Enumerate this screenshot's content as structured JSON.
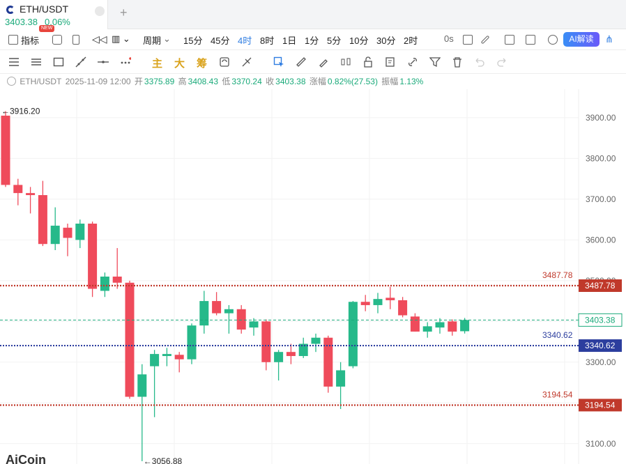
{
  "tab": {
    "title": "ETH/USDT",
    "price": "3403.38",
    "change": "0.06%",
    "add_label": "+"
  },
  "toolbar": {
    "indicator_label": "指标",
    "new_badge": "NEW",
    "period_label": "周期",
    "periods": [
      "15分",
      "45分",
      "4时",
      "8时",
      "1日",
      "1分",
      "5分",
      "10分",
      "30分",
      "2时"
    ],
    "active_period": "4时",
    "countdown": "0s",
    "ai_label": "AI解读"
  },
  "drawing_tools": {
    "main_label": "主",
    "big_label": "大",
    "chip_label": "筹"
  },
  "info": {
    "symbol": "ETH/USDT",
    "datetime": "2025-11-09 12:00",
    "open_label": "开",
    "open": "3375.89",
    "high_label": "高",
    "high": "3408.43",
    "low_label": "低",
    "low": "3370.24",
    "close_label": "收",
    "close": "3403.38",
    "change_label": "涨幅",
    "change": "0.82%(27.53)",
    "amplitude_label": "振幅",
    "amplitude": "1.13%"
  },
  "logo": "AiCoin",
  "chart_data": {
    "type": "candlestick",
    "ylim": [
      3050,
      3970
    ],
    "y_ticks": [
      3100,
      3200,
      3300,
      3400,
      3500,
      3600,
      3700,
      3800,
      3900
    ],
    "y_tick_labels": [
      "3100.00",
      "3200.00",
      "3300.00",
      "3400.00",
      "3500.00",
      "3600.00",
      "3700.00",
      "3800.00",
      "3900.00"
    ],
    "candles": [
      {
        "o": 3905,
        "h": 3916.2,
        "l": 3730,
        "c": 3735
      },
      {
        "o": 3735,
        "h": 3750,
        "l": 3685,
        "c": 3715
      },
      {
        "o": 3715,
        "h": 3730,
        "l": 3665,
        "c": 3710
      },
      {
        "o": 3710,
        "h": 3745,
        "l": 3585,
        "c": 3590
      },
      {
        "o": 3590,
        "h": 3680,
        "l": 3575,
        "c": 3635
      },
      {
        "o": 3630,
        "h": 3640,
        "l": 3560,
        "c": 3605
      },
      {
        "o": 3600,
        "h": 3650,
        "l": 3580,
        "c": 3640
      },
      {
        "o": 3640,
        "h": 3645,
        "l": 3460,
        "c": 3480
      },
      {
        "o": 3475,
        "h": 3520,
        "l": 3460,
        "c": 3510
      },
      {
        "o": 3510,
        "h": 3580,
        "l": 3480,
        "c": 3495
      },
      {
        "o": 3495,
        "h": 3500,
        "l": 3210,
        "c": 3215
      },
      {
        "o": 3215,
        "h": 3295,
        "l": 3056.88,
        "c": 3270
      },
      {
        "o": 3290,
        "h": 3330,
        "l": 3165,
        "c": 3320
      },
      {
        "o": 3315,
        "h": 3335,
        "l": 3290,
        "c": 3320
      },
      {
        "o": 3318,
        "h": 3325,
        "l": 3275,
        "c": 3307
      },
      {
        "o": 3307,
        "h": 3395,
        "l": 3295,
        "c": 3390
      },
      {
        "o": 3390,
        "h": 3475,
        "l": 3370,
        "c": 3450
      },
      {
        "o": 3450,
        "h": 3472,
        "l": 3415,
        "c": 3420
      },
      {
        "o": 3420,
        "h": 3440,
        "l": 3370,
        "c": 3430
      },
      {
        "o": 3430,
        "h": 3440,
        "l": 3370,
        "c": 3380
      },
      {
        "o": 3385,
        "h": 3408,
        "l": 3365,
        "c": 3400
      },
      {
        "o": 3400,
        "h": 3405,
        "l": 3280,
        "c": 3300
      },
      {
        "o": 3300,
        "h": 3330,
        "l": 3255,
        "c": 3325
      },
      {
        "o": 3325,
        "h": 3345,
        "l": 3295,
        "c": 3315
      },
      {
        "o": 3315,
        "h": 3360,
        "l": 3310,
        "c": 3345
      },
      {
        "o": 3345,
        "h": 3370,
        "l": 3325,
        "c": 3360
      },
      {
        "o": 3360,
        "h": 3365,
        "l": 3225,
        "c": 3240
      },
      {
        "o": 3240,
        "h": 3300,
        "l": 3185,
        "c": 3280
      },
      {
        "o": 3290,
        "h": 3450,
        "l": 3285,
        "c": 3448
      },
      {
        "o": 3448,
        "h": 3465,
        "l": 3425,
        "c": 3440
      },
      {
        "o": 3440,
        "h": 3470,
        "l": 3420,
        "c": 3455
      },
      {
        "o": 3458,
        "h": 3485,
        "l": 3430,
        "c": 3452
      },
      {
        "o": 3452,
        "h": 3460,
        "l": 3410,
        "c": 3415
      },
      {
        "o": 3412,
        "h": 3420,
        "l": 3375,
        "c": 3375
      },
      {
        "o": 3375,
        "h": 3398,
        "l": 3360,
        "c": 3388
      },
      {
        "o": 3385,
        "h": 3408,
        "l": 3370,
        "c": 3398
      },
      {
        "o": 3400,
        "h": 3405,
        "l": 3365,
        "c": 3375
      },
      {
        "o": 3375.89,
        "h": 3408.43,
        "l": 3370.24,
        "c": 3403.38
      }
    ],
    "annotations": {
      "high_label": "3916.20",
      "low_label": "3056.88"
    },
    "horizontal_lines": [
      {
        "value": 3487.78,
        "label": "3487.78",
        "color": "#c0392b",
        "style": "dotted"
      },
      {
        "value": 3340.62,
        "label": "3340.62",
        "color": "#2c3e9e",
        "style": "dotted"
      },
      {
        "value": 3194.54,
        "label": "3194.54",
        "color": "#c0392b",
        "style": "dotted"
      }
    ],
    "last_price": {
      "value": 3403.38,
      "label": "3403.38",
      "color": "#1aaa7a"
    },
    "up_color": "#26b98a",
    "down_color": "#ef4b5b"
  }
}
